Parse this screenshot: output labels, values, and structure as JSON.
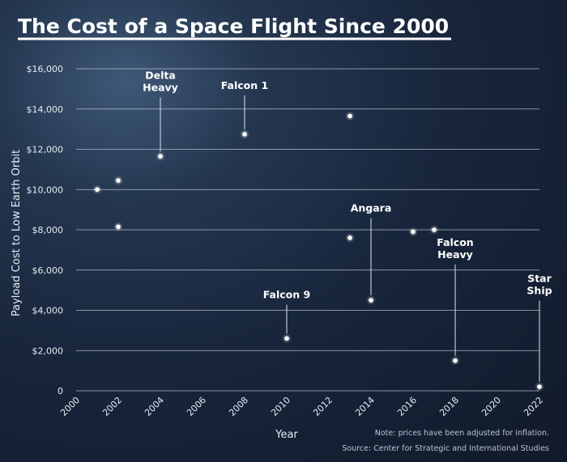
{
  "chart_data": {
    "type": "scatter",
    "title": "The Cost of a Space Flight Since 2000",
    "xlabel": "Year",
    "ylabel": "Payload Cost to Low Earth Orbit",
    "xlim": [
      2000,
      2022
    ],
    "ylim": [
      0,
      16000
    ],
    "x_ticks": [
      2000,
      2002,
      2004,
      2006,
      2008,
      2010,
      2012,
      2014,
      2016,
      2018,
      2020,
      2022
    ],
    "y_ticks": [
      0,
      2000,
      4000,
      6000,
      8000,
      10000,
      12000,
      14000,
      16000
    ],
    "y_tick_labels": [
      "0",
      "$2,000",
      "$4,000",
      "$6,000",
      "$8,000",
      "$10,000",
      "$12,000",
      "$14,000",
      "$16,000"
    ],
    "grid": "horizontal",
    "points": [
      {
        "x": 2001,
        "y": 10000
      },
      {
        "x": 2002,
        "y": 10450
      },
      {
        "x": 2002,
        "y": 8150
      },
      {
        "x": 2004,
        "y": 11650,
        "label": "Delta Heavy"
      },
      {
        "x": 2008,
        "y": 12750,
        "label": "Falcon 1"
      },
      {
        "x": 2010,
        "y": 2600,
        "label": "Falcon 9"
      },
      {
        "x": 2013,
        "y": 13650
      },
      {
        "x": 2013,
        "y": 7600
      },
      {
        "x": 2014,
        "y": 4500,
        "label": "Angara"
      },
      {
        "x": 2016,
        "y": 7900
      },
      {
        "x": 2017,
        "y": 8000
      },
      {
        "x": 2018,
        "y": 1500,
        "label": "Falcon Heavy"
      },
      {
        "x": 2022,
        "y": 200,
        "label": "Star Ship"
      }
    ],
    "annotations": [
      {
        "lines": [
          "Delta",
          "Heavy"
        ],
        "x": 2004,
        "label_y": 15500
      },
      {
        "lines": [
          "Falcon 1"
        ],
        "x": 2008,
        "label_y": 15000
      },
      {
        "lines": [
          "Falcon 9"
        ],
        "x": 2010,
        "label_y": 4600
      },
      {
        "lines": [
          "Angara"
        ],
        "x": 2014,
        "label_y": 8900
      },
      {
        "lines": [
          "Falcon",
          "Heavy"
        ],
        "x": 2018,
        "label_y": 7200
      },
      {
        "lines": [
          "Star",
          "Ship"
        ],
        "x": 2022,
        "label_y": 5400
      }
    ],
    "notes": [
      "Note: prices have been adjusted for inflation.",
      "Source: Center for Strategic and International Studies"
    ],
    "colors": {
      "point": "#ffffff",
      "grid": "#c9d2de",
      "text": "#ffffff"
    }
  }
}
